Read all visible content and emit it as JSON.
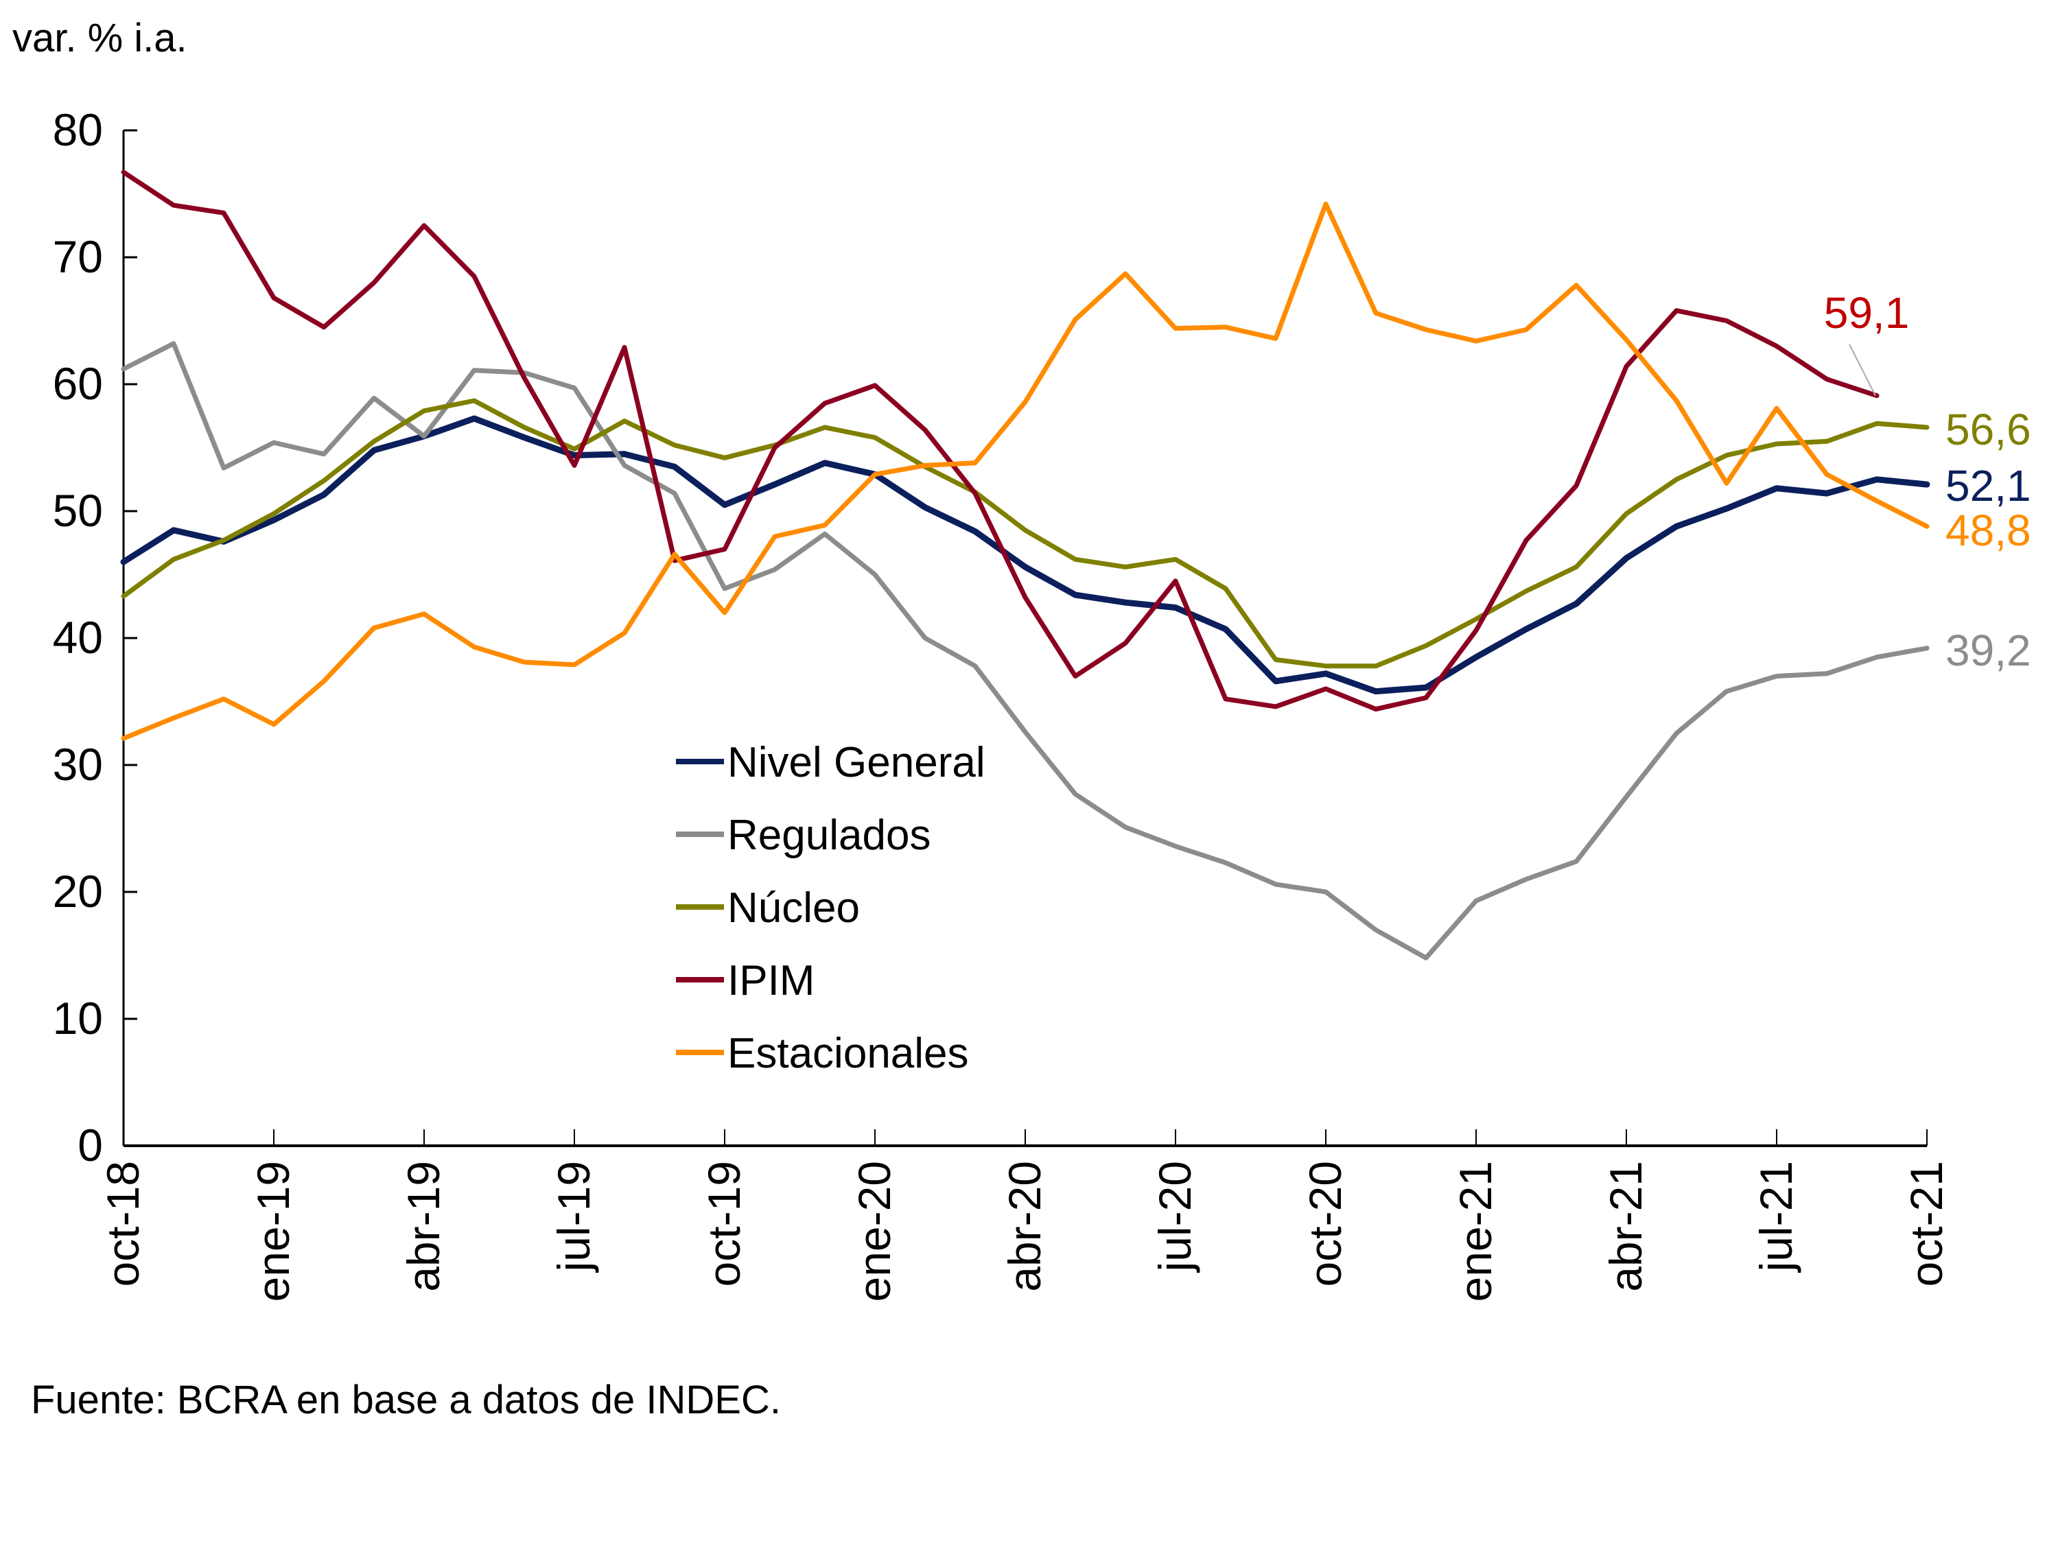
{
  "chart_data": {
    "type": "line",
    "title": "",
    "ylabel": "var. % i.a.",
    "xlabel": "",
    "ylim": [
      0,
      80
    ],
    "yticks": [
      0,
      10,
      20,
      30,
      40,
      50,
      60,
      70,
      80
    ],
    "x": [
      "oct-18",
      "nov-18",
      "dic-18",
      "ene-19",
      "feb-19",
      "mar-19",
      "abr-19",
      "may-19",
      "jun-19",
      "jul-19",
      "ago-19",
      "sep-19",
      "oct-19",
      "nov-19",
      "dic-19",
      "ene-20",
      "feb-20",
      "mar-20",
      "abr-20",
      "may-20",
      "jun-20",
      "jul-20",
      "ago-20",
      "sep-20",
      "oct-20",
      "nov-20",
      "dic-20",
      "ene-21",
      "feb-21",
      "mar-21",
      "abr-21",
      "may-21",
      "jun-21",
      "jul-21",
      "ago-21",
      "sep-21",
      "oct-21"
    ],
    "xtick_labels": [
      "oct-18",
      "ene-19",
      "abr-19",
      "jul-19",
      "oct-19",
      "ene-20",
      "abr-20",
      "jul-20",
      "oct-20",
      "ene-21",
      "abr-21",
      "jul-21",
      "oct-21"
    ],
    "grid": false,
    "legend_position": "center-left",
    "series": [
      {
        "name": "Nivel General",
        "color": "#0b1f5c",
        "end_label": "52,1",
        "values": [
          46.0,
          48.5,
          47.6,
          49.3,
          51.3,
          54.8,
          55.9,
          57.3,
          55.8,
          54.4,
          54.5,
          53.5,
          50.5,
          52.1,
          53.8,
          52.9,
          50.3,
          48.4,
          45.6,
          43.4,
          42.8,
          42.4,
          40.7,
          36.6,
          37.2,
          35.8,
          36.1,
          38.5,
          40.7,
          42.7,
          46.3,
          48.8,
          50.2,
          51.8,
          51.4,
          52.5,
          52.1
        ]
      },
      {
        "name": "Regulados",
        "color": "#8c8c8c",
        "end_label": "39,2",
        "values": [
          61.2,
          63.2,
          53.4,
          55.4,
          54.5,
          58.9,
          55.9,
          61.1,
          60.9,
          59.7,
          53.6,
          51.4,
          43.9,
          45.4,
          48.2,
          45.0,
          40.0,
          37.8,
          32.6,
          27.7,
          25.1,
          23.6,
          22.3,
          20.6,
          20.0,
          17.0,
          14.8,
          19.3,
          21.0,
          22.4,
          27.5,
          32.5,
          35.8,
          37.0,
          37.2,
          38.5,
          39.2
        ]
      },
      {
        "name": "Núcleo",
        "color": "#7f8000",
        "end_label": "56,6",
        "values": [
          43.3,
          46.2,
          47.7,
          49.8,
          52.4,
          55.5,
          57.9,
          58.7,
          56.6,
          54.9,
          57.1,
          55.2,
          54.2,
          55.2,
          56.6,
          55.8,
          53.5,
          51.5,
          48.5,
          46.2,
          45.6,
          46.2,
          43.9,
          38.3,
          37.8,
          37.8,
          39.4,
          41.5,
          43.7,
          45.6,
          49.8,
          52.5,
          54.4,
          55.3,
          55.5,
          56.9,
          56.6
        ]
      },
      {
        "name": "IPIM",
        "color": "#8b0020",
        "end_label": "59,1",
        "end_label_color": "#c00000",
        "values": [
          76.7,
          74.1,
          73.5,
          66.8,
          64.5,
          68.0,
          72.5,
          68.5,
          60.5,
          53.6,
          62.9,
          46.1,
          47.0,
          55.0,
          58.5,
          59.9,
          56.4,
          51.4,
          43.2,
          37.0,
          39.6,
          44.5,
          35.2,
          34.6,
          36.0,
          34.4,
          35.3,
          40.6,
          47.7,
          52.0,
          61.4,
          65.8,
          65.0,
          63.0,
          60.4,
          59.1,
          null
        ]
      },
      {
        "name": "Estacionales",
        "color": "#ff8c00",
        "end_label": "48,8",
        "values": [
          32.1,
          33.7,
          35.2,
          33.2,
          36.6,
          40.8,
          41.9,
          39.3,
          38.1,
          37.9,
          40.4,
          46.6,
          42.0,
          48.0,
          48.9,
          52.9,
          53.6,
          53.8,
          58.6,
          65.1,
          68.7,
          64.4,
          64.5,
          63.6,
          74.2,
          65.6,
          64.3,
          63.4,
          64.3,
          67.8,
          63.5,
          58.7,
          52.2,
          58.1,
          52.9,
          50.8,
          48.8
        ]
      }
    ],
    "annotations": [
      "59,1",
      "56,6",
      "52,1",
      "48,8",
      "39,2"
    ],
    "source": "Fuente: BCRA en base a datos de INDEC."
  }
}
